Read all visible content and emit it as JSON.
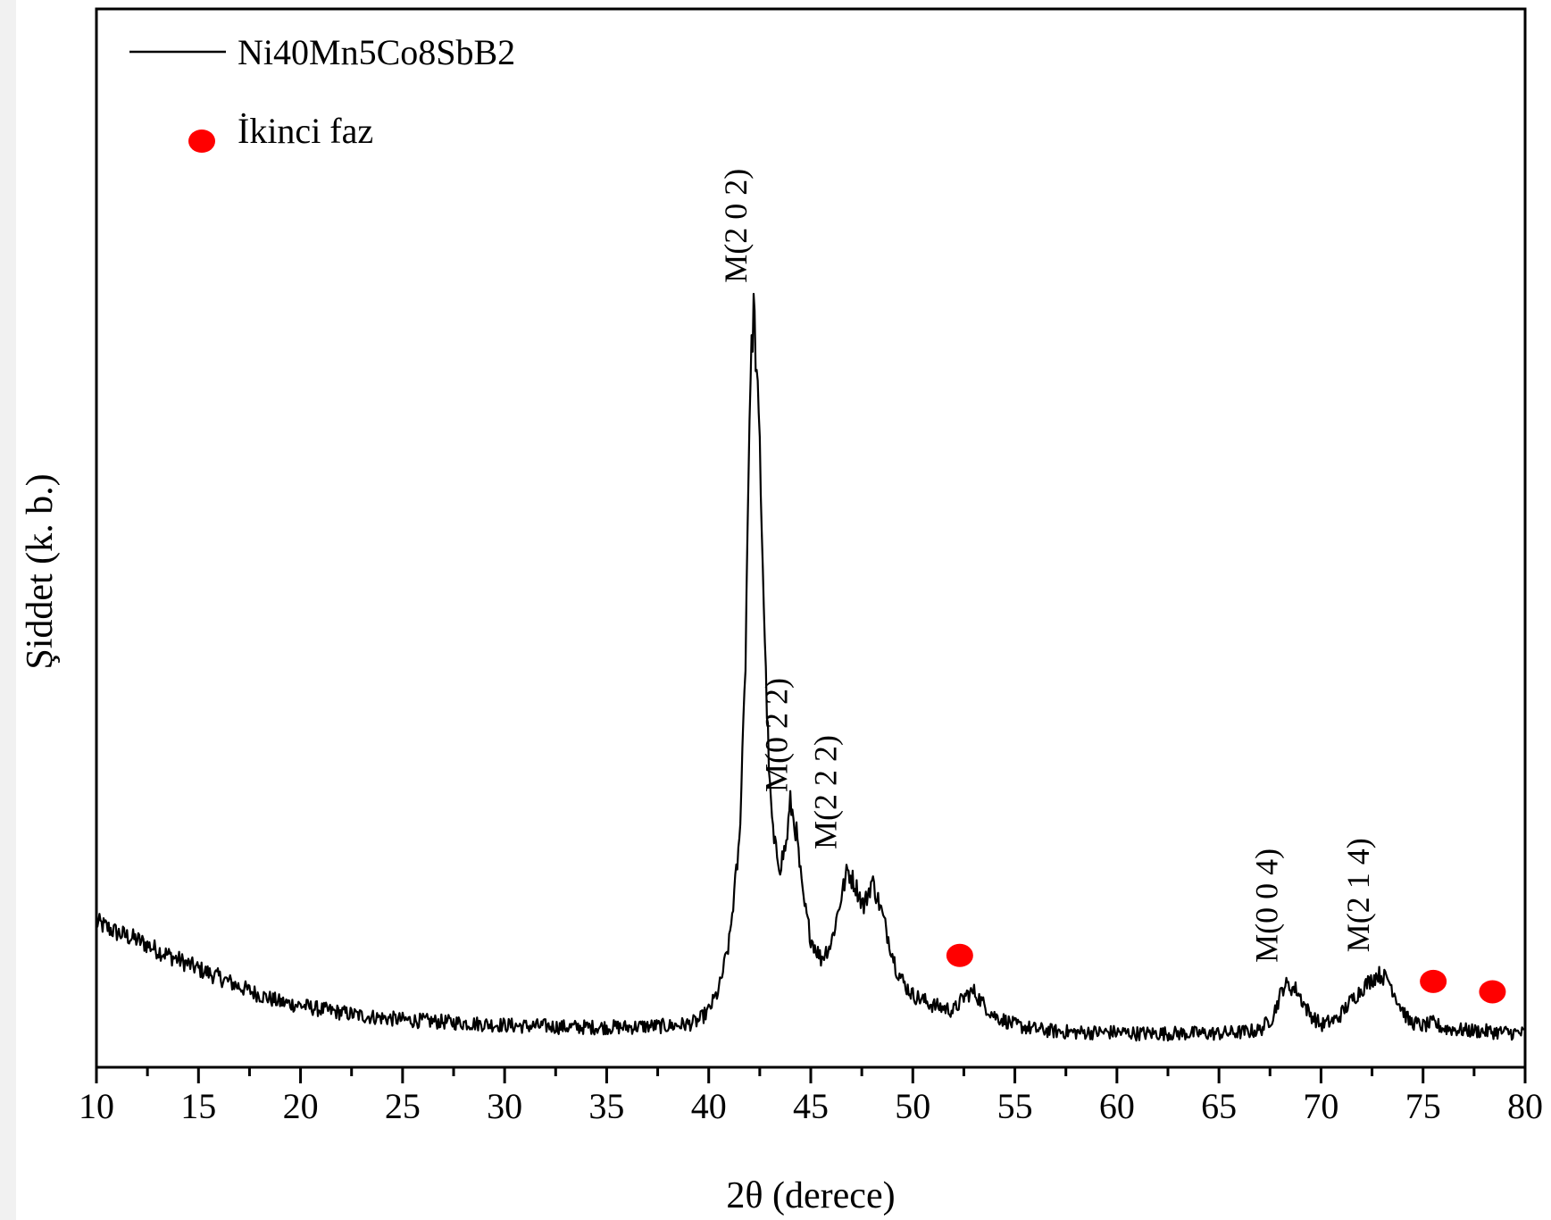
{
  "chart_data": {
    "type": "line",
    "title": "",
    "xlabel": "2θ (derece)",
    "ylabel": "Şiddet (k. b.)",
    "xlim": [
      10,
      80
    ],
    "ylim": [
      0,
      100
    ],
    "xticks": [
      "10",
      "15",
      "20",
      "25",
      "30",
      "35",
      "40",
      "45",
      "50",
      "55",
      "60",
      "65",
      "70",
      "75",
      "80"
    ],
    "legend_position": "top-left",
    "series": [
      {
        "name": "Ni40Mn5Co8SbB2",
        "color": "#000000",
        "x": [
          10,
          11,
          12,
          13,
          14,
          15,
          16,
          17,
          18,
          19,
          20,
          21,
          22,
          23,
          24,
          25,
          26,
          27,
          28,
          29,
          30,
          31,
          32,
          33,
          34,
          35,
          36,
          37,
          38,
          39,
          39.5,
          40,
          40.5,
          41,
          41.5,
          41.8,
          42,
          42.2,
          42.5,
          42.8,
          43,
          43.2,
          43.5,
          43.8,
          44,
          44.3,
          44.6,
          45,
          45.5,
          46,
          46.5,
          46.8,
          47.2,
          47.6,
          48,
          48.4,
          48.8,
          49.2,
          49.6,
          50,
          51,
          52,
          52.6,
          53,
          53.5,
          54,
          55,
          56,
          57,
          58,
          59,
          60,
          61,
          62,
          63,
          64,
          65,
          66,
          67,
          67.6,
          68.2,
          68.8,
          69.4,
          70,
          70.8,
          71.5,
          72.2,
          72.8,
          73.3,
          73.8,
          74.3,
          75,
          75.5,
          76,
          77,
          78,
          79,
          80
        ],
        "y": [
          12.5,
          11.5,
          10.8,
          9.8,
          8.9,
          8,
          7.2,
          6.3,
          5.5,
          4.8,
          4.5,
          4.1,
          3.8,
          3.5,
          3.3,
          3.1,
          3,
          2.9,
          2.8,
          2.7,
          2.6,
          2.5,
          2.5,
          2.4,
          2.4,
          2.4,
          2.4,
          2.5,
          2.5,
          2.7,
          3,
          4,
          6,
          10.5,
          20,
          38,
          62,
          72,
          58,
          36,
          25,
          20,
          18,
          20,
          24,
          21,
          15,
          11,
          9,
          10.5,
          15,
          17.5,
          16,
          14,
          16.5,
          14,
          11,
          8,
          6.5,
          5.5,
          4.5,
          4,
          5.5,
          5.8,
          4.5,
          3.5,
          2.6,
          2.2,
          2,
          1.9,
          1.9,
          1.9,
          1.8,
          1.8,
          1.8,
          1.8,
          1.8,
          1.9,
          2.1,
          3.3,
          6.5,
          6,
          3.8,
          2.6,
          3.2,
          5,
          6.5,
          7.5,
          7,
          4.8,
          3,
          2.5,
          2.8,
          2.3,
          2.1,
          2,
          1.9,
          1.8
        ]
      }
    ],
    "peak_labels": [
      {
        "text": "M(2 0 2)",
        "x": 42.2,
        "y": 74
      },
      {
        "text": "M(0 2 2)",
        "x": 44.2,
        "y": 25
      },
      {
        "text": "M(2 2 2)",
        "x": 46.6,
        "y": 19.5
      },
      {
        "text": "M(0 0 4)",
        "x": 68.2,
        "y": 8.6
      },
      {
        "text": "M(2 1 4)",
        "x": 72.7,
        "y": 9.6
      }
    ],
    "second_phase": {
      "name": "İkinci faz",
      "color": "#ff0000",
      "markers": [
        {
          "x": 52.3,
          "y": 9.3
        },
        {
          "x": 75.5,
          "y": 6.8
        },
        {
          "x": 78.4,
          "y": 5.8
        }
      ]
    }
  }
}
